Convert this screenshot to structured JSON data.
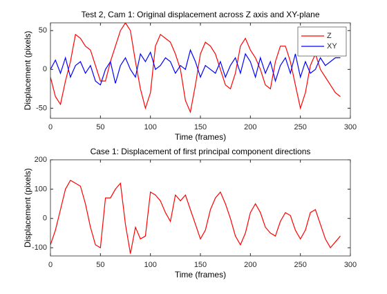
{
  "chart_data": [
    {
      "type": "line",
      "title": "Test 2, Cam 1: Original displacement across Z axis and XY-plane",
      "xlabel": "Time (frames)",
      "ylabel": "Displacement (pixels)",
      "x": [
        0,
        5,
        10,
        15,
        20,
        25,
        30,
        35,
        40,
        45,
        50,
        55,
        60,
        65,
        70,
        75,
        80,
        85,
        90,
        95,
        100,
        105,
        110,
        115,
        120,
        125,
        130,
        135,
        140,
        145,
        150,
        155,
        160,
        165,
        170,
        175,
        180,
        185,
        190,
        195,
        200,
        205,
        210,
        215,
        220,
        225,
        230,
        235,
        240,
        245,
        250,
        255,
        260,
        265,
        270,
        275,
        280,
        285,
        290
      ],
      "series": [
        {
          "name": "Z",
          "color": "#ff0000",
          "values": [
            -10,
            -35,
            -45,
            -15,
            10,
            45,
            40,
            30,
            25,
            5,
            -15,
            -15,
            10,
            30,
            50,
            60,
            50,
            10,
            -25,
            -50,
            -30,
            30,
            45,
            40,
            35,
            20,
            0,
            -40,
            -55,
            -20,
            20,
            35,
            30,
            20,
            0,
            -20,
            -25,
            -5,
            30,
            40,
            25,
            15,
            0,
            -20,
            -25,
            10,
            30,
            30,
            10,
            -20,
            -50,
            -30,
            5,
            20,
            0,
            -10,
            -20,
            -30,
            -35
          ]
        },
        {
          "name": "XY",
          "color": "#0000ff",
          "values": [
            0,
            12,
            -5,
            15,
            -10,
            5,
            10,
            -5,
            5,
            -15,
            -20,
            0,
            10,
            -18,
            5,
            15,
            0,
            -10,
            20,
            10,
            22,
            0,
            5,
            15,
            10,
            -5,
            5,
            0,
            25,
            10,
            -10,
            5,
            0,
            -5,
            10,
            -10,
            5,
            15,
            -5,
            20,
            10,
            -10,
            15,
            -5,
            10,
            -15,
            5,
            15,
            -5,
            20,
            -10,
            10,
            -5,
            0,
            15,
            5,
            10,
            15,
            15
          ]
        }
      ],
      "xlim": [
        0,
        300
      ],
      "xticks": [
        0,
        50,
        100,
        150,
        200,
        250,
        300
      ],
      "ylim": [
        -63,
        60
      ],
      "yticks": [
        -50,
        0,
        50
      ],
      "legend": "northeast"
    },
    {
      "type": "line",
      "title": "Case 1: Displacement of first principal component directions",
      "xlabel": "Time (frames)",
      "ylabel": "Displacement (pixels)",
      "x": [
        0,
        5,
        10,
        15,
        20,
        25,
        30,
        35,
        40,
        45,
        50,
        55,
        60,
        65,
        70,
        75,
        80,
        85,
        90,
        95,
        100,
        105,
        110,
        115,
        120,
        125,
        130,
        135,
        140,
        145,
        150,
        155,
        160,
        165,
        170,
        175,
        180,
        185,
        190,
        195,
        200,
        205,
        210,
        215,
        220,
        225,
        230,
        235,
        240,
        245,
        250,
        255,
        260,
        265,
        270,
        275,
        280,
        285,
        290
      ],
      "series": [
        {
          "color": "#ff0000",
          "values": [
            -90,
            -40,
            30,
            100,
            130,
            120,
            110,
            50,
            -30,
            -90,
            -100,
            70,
            70,
            100,
            120,
            -20,
            -120,
            -30,
            -70,
            -60,
            90,
            80,
            60,
            20,
            -10,
            80,
            60,
            80,
            30,
            -20,
            -70,
            -40,
            30,
            70,
            90,
            50,
            0,
            -60,
            -90,
            -50,
            20,
            50,
            20,
            -30,
            -50,
            -60,
            -10,
            20,
            10,
            -40,
            -70,
            -40,
            20,
            30,
            -20,
            -70,
            -100,
            -80,
            -60
          ]
        }
      ],
      "xlim": [
        0,
        300
      ],
      "xticks": [
        0,
        50,
        100,
        150,
        200,
        250,
        300
      ],
      "ylim": [
        -128,
        200
      ],
      "yticks": [
        -100,
        0,
        100,
        200
      ]
    }
  ]
}
